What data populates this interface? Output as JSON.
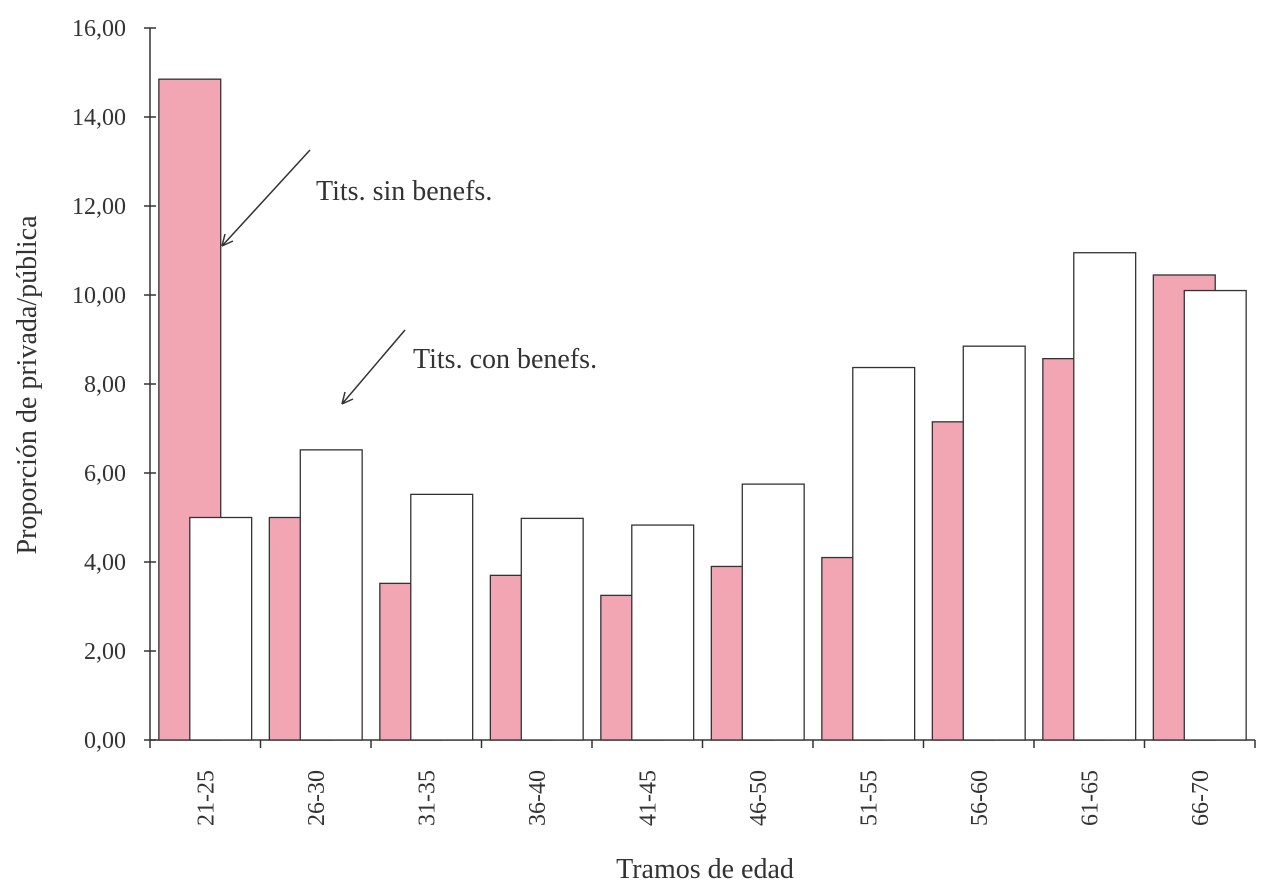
{
  "chart_data": {
    "type": "bar",
    "categories": [
      "21-25",
      "26-30",
      "31-35",
      "36-40",
      "41-45",
      "46-50",
      "51-55",
      "56-60",
      "61-65",
      "66-70"
    ],
    "series": [
      {
        "values": [
          14.85,
          5.0,
          3.52,
          3.7,
          3.25,
          3.9,
          4.1,
          7.15,
          8.57,
          10.45
        ],
        "color": "#f2a5b3"
      },
      {
        "values": [
          5.0,
          6.52,
          5.52,
          4.98,
          4.83,
          5.75,
          8.37,
          8.85,
          10.95,
          10.1
        ],
        "color": "#ffffff"
      }
    ],
    "xlabel": "Tramos de edad",
    "ylabel": "Proporción de privada/pública",
    "ylim": [
      0,
      16
    ],
    "yticks": [
      "0,00",
      "2,00",
      "4,00",
      "6,00",
      "8,00",
      "10,00",
      "12,00",
      "14,00",
      "16,00"
    ],
    "annotations": [
      "Tits. sin benefs.",
      "Tits. con benefs."
    ],
    "grid": false
  }
}
